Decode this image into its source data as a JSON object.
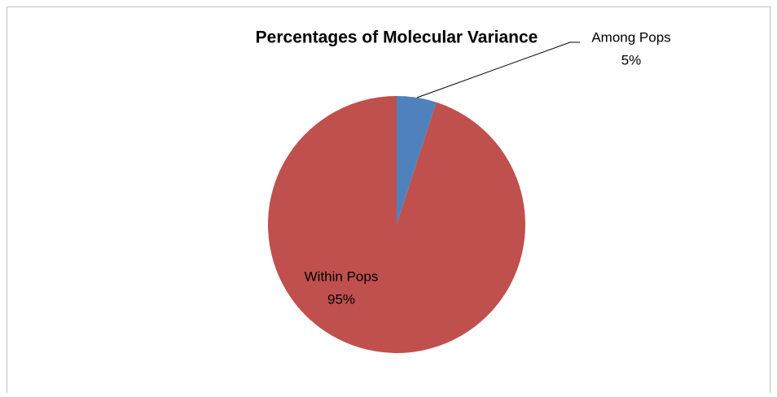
{
  "chart_data": {
    "type": "pie",
    "title": "Percentages of Molecular Variance",
    "categories": [
      "Among Pops",
      "Within Pops"
    ],
    "values": [
      5,
      95
    ],
    "value_labels": [
      "5%",
      "95%"
    ],
    "colors": [
      "#4f81bd",
      "#c0504d"
    ]
  }
}
